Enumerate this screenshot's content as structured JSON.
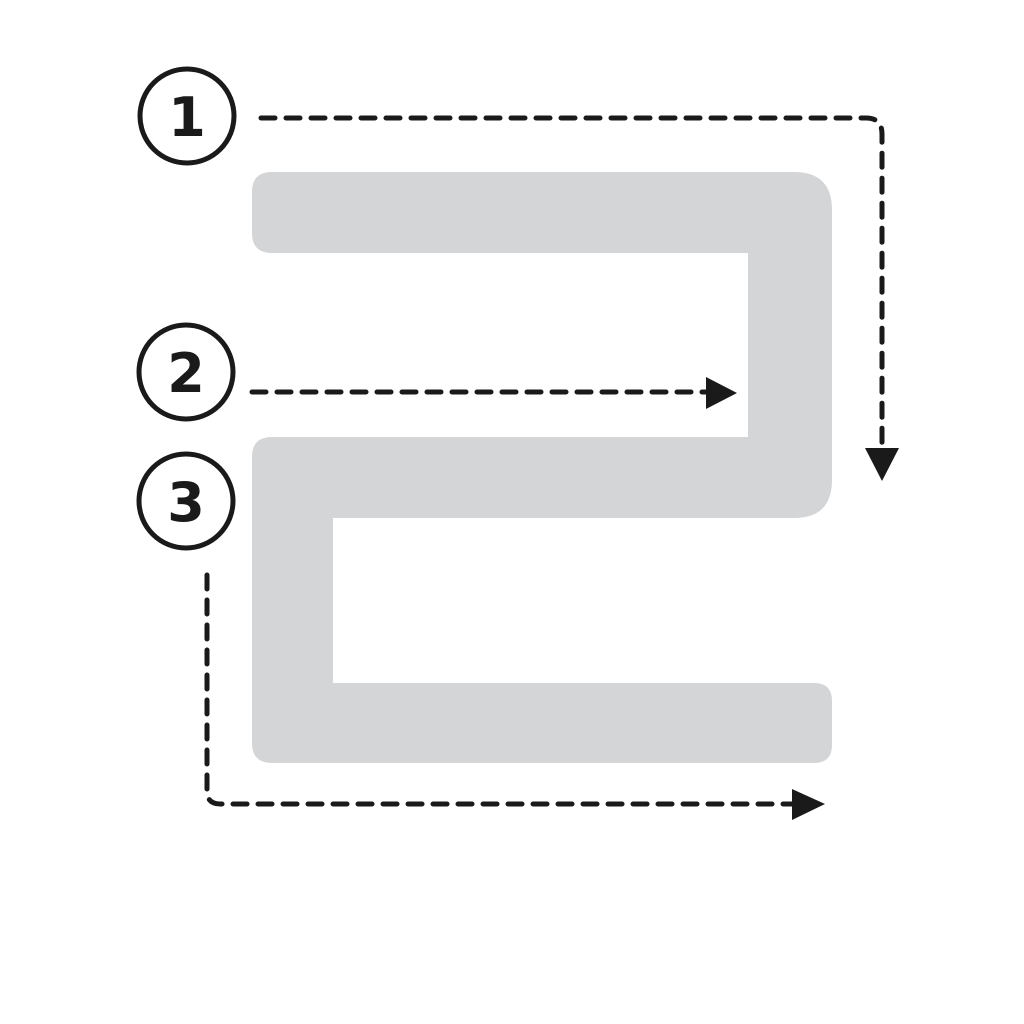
{
  "colors": {
    "background": "#ffffff",
    "glyph_fill": "#d4d5d7",
    "ink": "#1a1a1a"
  },
  "glyph": {
    "character": "2",
    "style": "letter-tracing-guide"
  },
  "steps": [
    {
      "number": "1",
      "direction": "right-then-down",
      "icon": "dashed-arrow-down"
    },
    {
      "number": "2",
      "direction": "right",
      "icon": "dashed-arrow-right"
    },
    {
      "number": "3",
      "direction": "down-then-right",
      "icon": "dashed-arrow-right"
    }
  ]
}
